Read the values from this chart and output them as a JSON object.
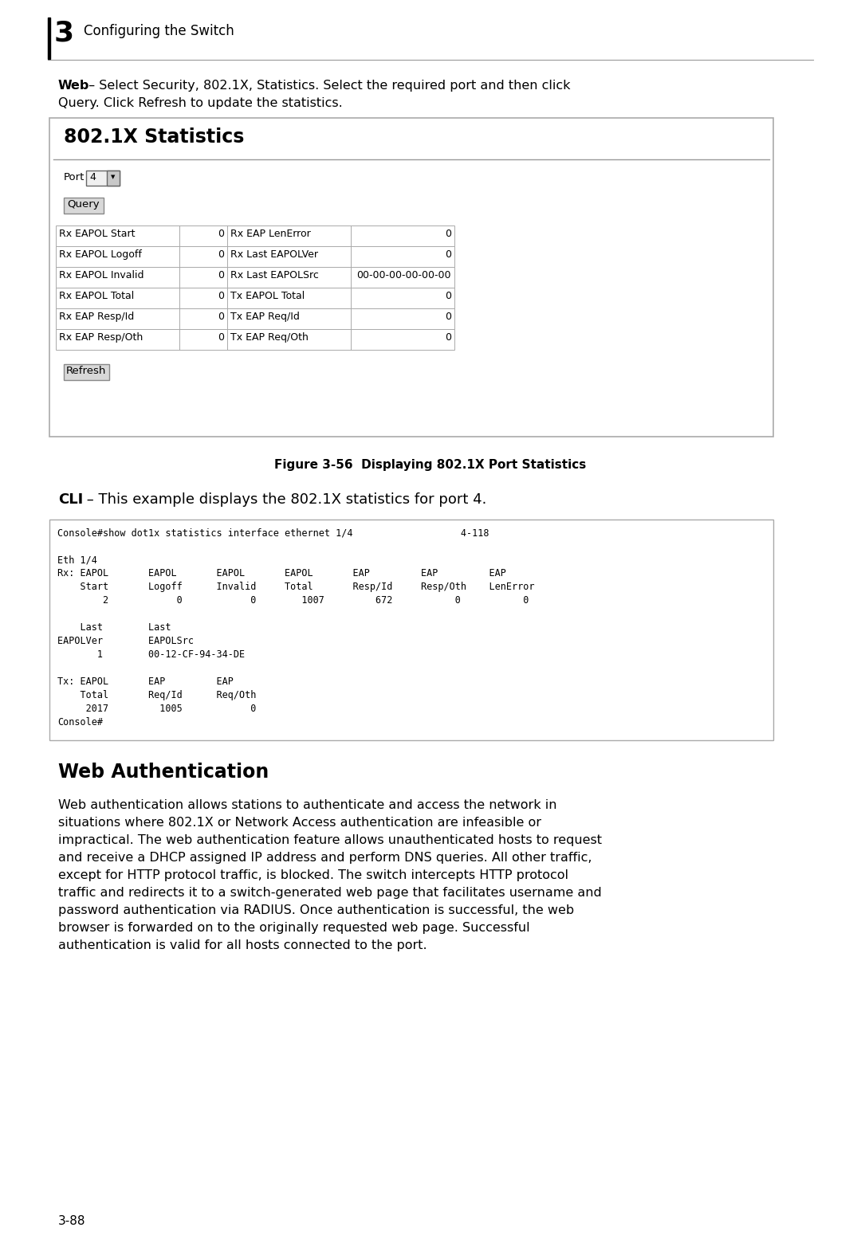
{
  "bg_color": "#ffffff",
  "chapter_number": "3",
  "chapter_title": "Configuring the Switch",
  "box_title": "802.1X Statistics",
  "port_label": "Port",
  "port_value": "4",
  "query_button": "Query",
  "table_rows": [
    [
      "Rx EAPOL Start",
      "0",
      "Rx EAP LenError",
      "0"
    ],
    [
      "Rx EAPOL Logoff",
      "0",
      "Rx Last EAPOLVer",
      "0"
    ],
    [
      "Rx EAPOL Invalid",
      "0",
      "Rx Last EAPOLSrc",
      "00-00-00-00-00-00"
    ],
    [
      "Rx EAPOL Total",
      "0",
      "Tx EAPOL Total",
      "0"
    ],
    [
      "Rx EAP Resp/Id",
      "0",
      "Tx EAP Req/Id",
      "0"
    ],
    [
      "Rx EAP Resp/Oth",
      "0",
      "Tx EAP Req/Oth",
      "0"
    ]
  ],
  "refresh_button": "Refresh",
  "figure_caption": "Figure 3-56  Displaying 802.1X Port Statistics",
  "cli_intro_bold": "CLI",
  "cli_intro_rest": " – This example displays the 802.1X statistics for port 4.",
  "cli_code_lines": [
    "Console#show dot1x statistics interface ethernet 1/4                   4-118",
    "",
    "Eth 1/4",
    "Rx: EAPOL       EAPOL       EAPOL       EAPOL       EAP         EAP         EAP",
    "    Start       Logoff      Invalid     Total       Resp/Id     Resp/Oth    LenError",
    "        2            0            0        1007         672           0           0",
    "",
    "    Last        Last",
    "EAPOLVer        EAPOLSrc",
    "       1        00-12-CF-94-34-DE",
    "",
    "Tx: EAPOL       EAP         EAP",
    "    Total       Req/Id      Req/Oth",
    "     2017         1005            0",
    "Console#"
  ],
  "section_title": "Web Authentication",
  "section_body_lines": [
    "Web authentication allows stations to authenticate and access the network in",
    "situations where 802.1X or Network Access authentication are infeasible or",
    "impractical. The web authentication feature allows unauthenticated hosts to request",
    "and receive a DHCP assigned IP address and perform DNS queries. All other traffic,",
    "except for HTTP protocol traffic, is blocked. The switch intercepts HTTP protocol",
    "traffic and redirects it to a switch-generated web page that facilitates username and",
    "password authentication via RADIUS. Once authentication is successful, the web",
    "browser is forwarded on to the originally requested web page. Successful",
    "authentication is valid for all hosts connected to the port."
  ],
  "page_number": "3-88"
}
